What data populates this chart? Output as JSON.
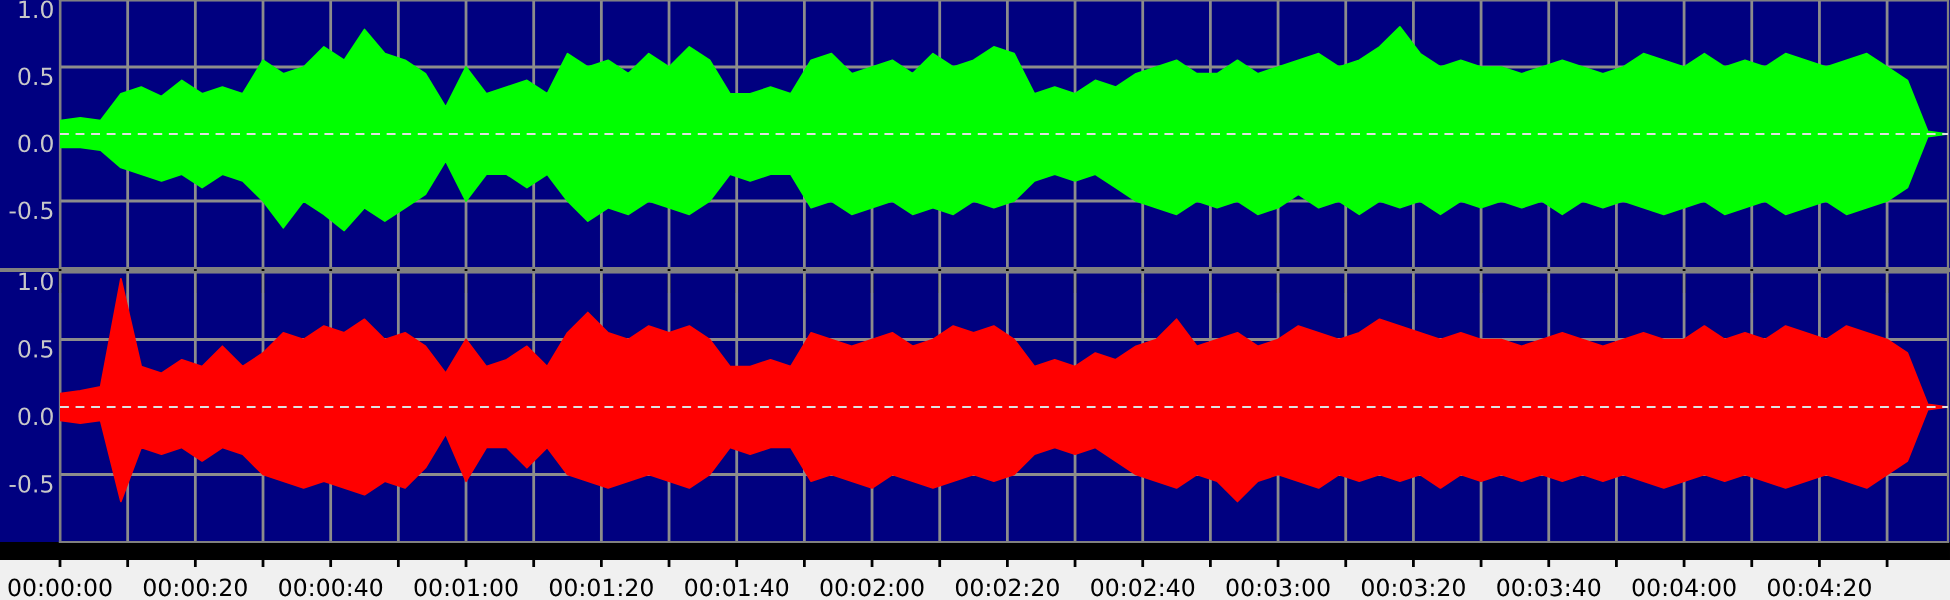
{
  "chart_data": [
    {
      "type": "area",
      "x": [
        0,
        3,
        6,
        9,
        12,
        15,
        18,
        21,
        24,
        27,
        30,
        33,
        36,
        39,
        42,
        45,
        48,
        51,
        54,
        57,
        60,
        63,
        66,
        69,
        72,
        75,
        78,
        81,
        84,
        87,
        90,
        93,
        96,
        99,
        102,
        105,
        108,
        111,
        114,
        117,
        120,
        123,
        126,
        129,
        132,
        135,
        138,
        141,
        144,
        147,
        150,
        153,
        156,
        159,
        162,
        165,
        168,
        171,
        174,
        177,
        180,
        183,
        186,
        189,
        192,
        195,
        198,
        201,
        204,
        207,
        210,
        213,
        216,
        219,
        222,
        225,
        228,
        231,
        234,
        237,
        240,
        243,
        246,
        249,
        252,
        255,
        258,
        261,
        264,
        267,
        270,
        273,
        276,
        279
      ],
      "series": [
        {
          "color": "#00ff00",
          "values": [
            0.1,
            0.12,
            0.1,
            0.3,
            0.35,
            0.28,
            0.4,
            0.3,
            0.35,
            0.3,
            0.55,
            0.45,
            0.5,
            0.65,
            0.55,
            0.78,
            0.6,
            0.55,
            0.45,
            0.2,
            0.5,
            0.3,
            0.35,
            0.4,
            0.3,
            0.6,
            0.5,
            0.55,
            0.45,
            0.6,
            0.5,
            0.65,
            0.55,
            0.3,
            0.3,
            0.35,
            0.3,
            0.55,
            0.6,
            0.45,
            0.5,
            0.55,
            0.45,
            0.6,
            0.5,
            0.55,
            0.65,
            0.6,
            0.3,
            0.35,
            0.3,
            0.4,
            0.35,
            0.45,
            0.5,
            0.55,
            0.45,
            0.45,
            0.55,
            0.45,
            0.5,
            0.55,
            0.6,
            0.5,
            0.55,
            0.65,
            0.8,
            0.6,
            0.5,
            0.55,
            0.5,
            0.5,
            0.45,
            0.5,
            0.55,
            0.5,
            0.45,
            0.5,
            0.6,
            0.55,
            0.5,
            0.6,
            0.5,
            0.55,
            0.5,
            0.6,
            0.55,
            0.5,
            0.55,
            0.6,
            0.5,
            0.4,
            0.02,
            0.0
          ]
        },
        {
          "color": "#00ff00",
          "values": [
            -0.1,
            -0.1,
            -0.12,
            -0.25,
            -0.3,
            -0.35,
            -0.3,
            -0.4,
            -0.3,
            -0.35,
            -0.5,
            -0.7,
            -0.5,
            -0.6,
            -0.72,
            -0.55,
            -0.65,
            -0.55,
            -0.45,
            -0.2,
            -0.5,
            -0.3,
            -0.3,
            -0.4,
            -0.3,
            -0.5,
            -0.65,
            -0.55,
            -0.6,
            -0.5,
            -0.55,
            -0.6,
            -0.5,
            -0.3,
            -0.35,
            -0.3,
            -0.3,
            -0.55,
            -0.5,
            -0.6,
            -0.55,
            -0.5,
            -0.6,
            -0.55,
            -0.6,
            -0.5,
            -0.55,
            -0.5,
            -0.35,
            -0.3,
            -0.35,
            -0.3,
            -0.4,
            -0.5,
            -0.55,
            -0.6,
            -0.5,
            -0.55,
            -0.5,
            -0.6,
            -0.55,
            -0.45,
            -0.55,
            -0.5,
            -0.6,
            -0.5,
            -0.55,
            -0.5,
            -0.6,
            -0.5,
            -0.55,
            -0.5,
            -0.55,
            -0.5,
            -0.6,
            -0.5,
            -0.55,
            -0.5,
            -0.55,
            -0.6,
            -0.55,
            -0.5,
            -0.6,
            -0.55,
            -0.5,
            -0.6,
            -0.55,
            -0.5,
            -0.6,
            -0.55,
            -0.5,
            -0.4,
            -0.02,
            0.0
          ]
        }
      ],
      "xlim": [
        0,
        279
      ],
      "xticks": [
        {
          "value": 0,
          "label": null
        },
        {
          "value": 10,
          "label": null
        },
        {
          "value": 20,
          "label": null
        },
        {
          "value": 30,
          "label": null
        },
        {
          "value": 40,
          "label": null
        },
        {
          "value": 50,
          "label": null
        },
        {
          "value": 60,
          "label": null
        },
        {
          "value": 70,
          "label": null
        },
        {
          "value": 80,
          "label": null
        },
        {
          "value": 90,
          "label": null
        },
        {
          "value": 100,
          "label": null
        },
        {
          "value": 110,
          "label": null
        },
        {
          "value": 120,
          "label": null
        },
        {
          "value": 130,
          "label": null
        },
        {
          "value": 140,
          "label": null
        },
        {
          "value": 150,
          "label": null
        },
        {
          "value": 160,
          "label": null
        },
        {
          "value": 170,
          "label": null
        },
        {
          "value": 180,
          "label": null
        },
        {
          "value": 190,
          "label": null
        },
        {
          "value": 200,
          "label": null
        },
        {
          "value": 210,
          "label": null
        },
        {
          "value": 220,
          "label": null
        },
        {
          "value": 230,
          "label": null
        },
        {
          "value": 240,
          "label": null
        },
        {
          "value": 250,
          "label": null
        },
        {
          "value": 260,
          "label": null
        },
        {
          "value": 270,
          "label": null
        }
      ],
      "ylim": [
        -1,
        1
      ],
      "yticks": [
        {
          "value": -0.5,
          "label": "-0.5"
        },
        {
          "value": 0,
          "label": "0.0"
        },
        {
          "value": 0.5,
          "label": "0.5"
        },
        {
          "value": 1,
          "label": "1.0"
        }
      ],
      "grid": true,
      "tick_labels": "y",
      "ref_lines": [
        {
          "axis": "y",
          "value": 0,
          "color": "#e0e0e0",
          "line_style": "dashed"
        }
      ]
    },
    {
      "type": "area",
      "x": [
        0,
        3,
        6,
        9,
        12,
        15,
        18,
        21,
        24,
        27,
        30,
        33,
        36,
        39,
        42,
        45,
        48,
        51,
        54,
        57,
        60,
        63,
        66,
        69,
        72,
        75,
        78,
        81,
        84,
        87,
        90,
        93,
        96,
        99,
        102,
        105,
        108,
        111,
        114,
        117,
        120,
        123,
        126,
        129,
        132,
        135,
        138,
        141,
        144,
        147,
        150,
        153,
        156,
        159,
        162,
        165,
        168,
        171,
        174,
        177,
        180,
        183,
        186,
        189,
        192,
        195,
        198,
        201,
        204,
        207,
        210,
        213,
        216,
        219,
        222,
        225,
        228,
        231,
        234,
        237,
        240,
        243,
        246,
        249,
        252,
        255,
        258,
        261,
        264,
        267,
        270,
        273,
        276,
        279
      ],
      "series": [
        {
          "color": "#ff0000",
          "values": [
            0.1,
            0.12,
            0.15,
            0.95,
            0.3,
            0.25,
            0.35,
            0.3,
            0.45,
            0.3,
            0.4,
            0.55,
            0.5,
            0.6,
            0.55,
            0.65,
            0.5,
            0.55,
            0.45,
            0.25,
            0.5,
            0.3,
            0.35,
            0.45,
            0.3,
            0.55,
            0.7,
            0.55,
            0.5,
            0.6,
            0.55,
            0.6,
            0.5,
            0.3,
            0.3,
            0.35,
            0.3,
            0.55,
            0.5,
            0.45,
            0.5,
            0.55,
            0.45,
            0.5,
            0.6,
            0.55,
            0.6,
            0.5,
            0.3,
            0.35,
            0.3,
            0.4,
            0.35,
            0.45,
            0.5,
            0.65,
            0.45,
            0.5,
            0.55,
            0.45,
            0.5,
            0.6,
            0.55,
            0.5,
            0.55,
            0.65,
            0.6,
            0.55,
            0.5,
            0.55,
            0.5,
            0.5,
            0.45,
            0.5,
            0.55,
            0.5,
            0.45,
            0.5,
            0.55,
            0.5,
            0.5,
            0.6,
            0.5,
            0.55,
            0.5,
            0.6,
            0.55,
            0.5,
            0.6,
            0.55,
            0.5,
            0.4,
            0.02,
            0.0
          ]
        },
        {
          "color": "#ff0000",
          "values": [
            -0.1,
            -0.12,
            -0.1,
            -0.7,
            -0.3,
            -0.35,
            -0.3,
            -0.4,
            -0.3,
            -0.35,
            -0.5,
            -0.55,
            -0.6,
            -0.55,
            -0.6,
            -0.65,
            -0.55,
            -0.6,
            -0.45,
            -0.2,
            -0.55,
            -0.3,
            -0.3,
            -0.45,
            -0.3,
            -0.5,
            -0.55,
            -0.6,
            -0.55,
            -0.5,
            -0.55,
            -0.6,
            -0.5,
            -0.3,
            -0.35,
            -0.3,
            -0.3,
            -0.55,
            -0.5,
            -0.55,
            -0.6,
            -0.5,
            -0.55,
            -0.6,
            -0.55,
            -0.5,
            -0.55,
            -0.5,
            -0.35,
            -0.3,
            -0.35,
            -0.3,
            -0.4,
            -0.5,
            -0.55,
            -0.6,
            -0.5,
            -0.55,
            -0.7,
            -0.55,
            -0.5,
            -0.55,
            -0.6,
            -0.5,
            -0.55,
            -0.5,
            -0.55,
            -0.5,
            -0.6,
            -0.5,
            -0.55,
            -0.5,
            -0.55,
            -0.5,
            -0.55,
            -0.5,
            -0.55,
            -0.5,
            -0.55,
            -0.6,
            -0.55,
            -0.5,
            -0.55,
            -0.5,
            -0.55,
            -0.6,
            -0.55,
            -0.5,
            -0.55,
            -0.6,
            -0.5,
            -0.4,
            -0.02,
            0.0
          ]
        }
      ],
      "xlim": [
        0,
        279
      ],
      "xticks": [
        {
          "value": 0,
          "label": "00:00:00"
        },
        {
          "value": 10,
          "label": null
        },
        {
          "value": 20,
          "label": "00:00:20"
        },
        {
          "value": 30,
          "label": null
        },
        {
          "value": 40,
          "label": "00:00:40"
        },
        {
          "value": 50,
          "label": null
        },
        {
          "value": 60,
          "label": "00:01:00"
        },
        {
          "value": 70,
          "label": null
        },
        {
          "value": 80,
          "label": "00:01:20"
        },
        {
          "value": 90,
          "label": null
        },
        {
          "value": 100,
          "label": "00:01:40"
        },
        {
          "value": 110,
          "label": null
        },
        {
          "value": 120,
          "label": "00:02:00"
        },
        {
          "value": 130,
          "label": null
        },
        {
          "value": 140,
          "label": "00:02:20"
        },
        {
          "value": 150,
          "label": null
        },
        {
          "value": 160,
          "label": "00:02:40"
        },
        {
          "value": 170,
          "label": null
        },
        {
          "value": 180,
          "label": "00:03:00"
        },
        {
          "value": 190,
          "label": null
        },
        {
          "value": 200,
          "label": "00:03:20"
        },
        {
          "value": 210,
          "label": null
        },
        {
          "value": 220,
          "label": "00:03:40"
        },
        {
          "value": 230,
          "label": null
        },
        {
          "value": 240,
          "label": "00:04:00"
        },
        {
          "value": 250,
          "label": null
        },
        {
          "value": 260,
          "label": "00:04:20"
        },
        {
          "value": 270,
          "label": null
        }
      ],
      "ylim": [
        -1,
        1
      ],
      "yticks": [
        {
          "value": -0.5,
          "label": "-0.5"
        },
        {
          "value": 0,
          "label": "0.0"
        },
        {
          "value": 0.5,
          "label": "0.5"
        },
        {
          "value": 1,
          "label": "1.0"
        }
      ],
      "grid": true,
      "ref_lines": [
        {
          "axis": "y",
          "value": 0,
          "color": "#e0e0e0",
          "line_style": "dashed"
        }
      ]
    }
  ]
}
